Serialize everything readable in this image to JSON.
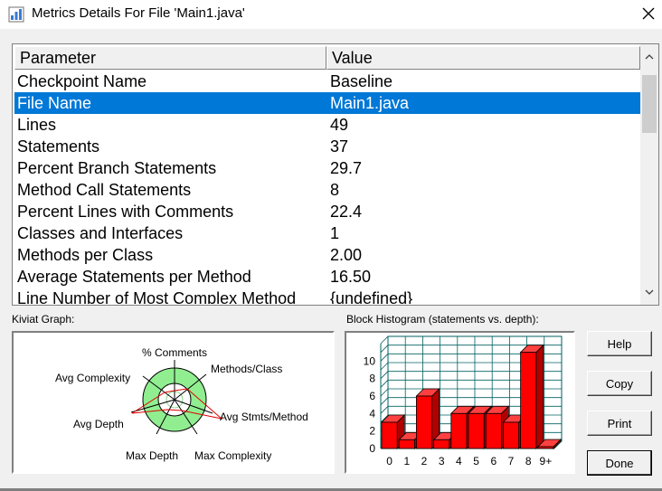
{
  "window": {
    "title": "Metrics Details For File 'Main1.java'",
    "close_icon": "close-icon"
  },
  "table": {
    "columns": [
      "Parameter",
      "Value"
    ],
    "rows": [
      {
        "parameter": "Checkpoint Name",
        "value": "Baseline"
      },
      {
        "parameter": "File Name",
        "value": "Main1.java",
        "selected": true
      },
      {
        "parameter": "Lines",
        "value": "49"
      },
      {
        "parameter": "Statements",
        "value": "37"
      },
      {
        "parameter": "Percent Branch Statements",
        "value": "29.7"
      },
      {
        "parameter": "Method Call Statements",
        "value": "8"
      },
      {
        "parameter": "Percent Lines with Comments",
        "value": "22.4"
      },
      {
        "parameter": "Classes and Interfaces",
        "value": "1"
      },
      {
        "parameter": "Methods per Class",
        "value": "2.00"
      },
      {
        "parameter": "Average Statements per Method",
        "value": "16.50"
      },
      {
        "parameter": "Line Number of Most Complex Method",
        "value": "{undefined}"
      }
    ]
  },
  "kiviat": {
    "label": "Kiviat Graph:",
    "axes": [
      "% Comments",
      "Methods/Class",
      "Avg Stmts/Method",
      "Max Complexity",
      "Max Depth",
      "Avg Depth",
      "Avg Complexity"
    ]
  },
  "histogram": {
    "label": "Block Histogram (statements vs. depth):",
    "bar_color": "#ff0000"
  },
  "chart_data": {
    "type": "bar",
    "categories": [
      "0",
      "1",
      "2",
      "3",
      "4",
      "5",
      "6",
      "7",
      "8",
      "9+"
    ],
    "values": [
      3,
      1,
      6,
      1,
      4,
      4,
      4,
      3,
      11,
      0
    ],
    "y_ticks": [
      "0",
      "2",
      "4",
      "6",
      "8",
      "10"
    ],
    "ylim": [
      0,
      12
    ]
  },
  "buttons": {
    "help": "Help",
    "copy": "Copy",
    "print": "Print",
    "done": "Done"
  }
}
